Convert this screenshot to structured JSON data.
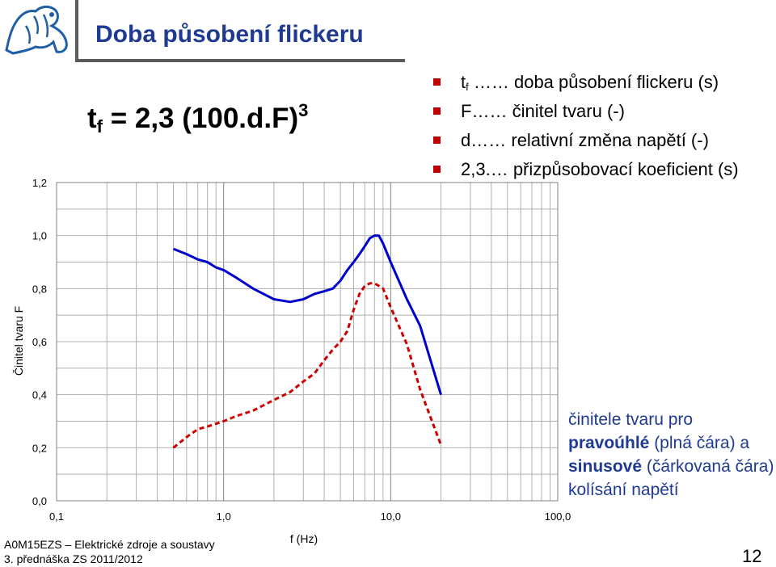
{
  "slide": {
    "title": "Doba působení flickeru",
    "formula": {
      "t": "t",
      "sub": "f",
      "rest": " = 2,3 (100.d.F)",
      "sup": "3"
    },
    "legend": [
      {
        "term": "t",
        "sub": "f",
        "text": " …… doba působení flickeru (s)"
      },
      {
        "term": "F",
        "sub": "",
        "text": "…… činitel tvaru (-)"
      },
      {
        "term": "d",
        "sub": "",
        "text": "…… relativní změna napětí (-)"
      },
      {
        "term": "2,3",
        "sub": "",
        "text": ".… přizpůsobovací koeficient (s)"
      }
    ],
    "note": {
      "p1": "činitele tvaru pro ",
      "b1": "pravoúhlé",
      "p2": " (plná čára) a ",
      "b2": "sinusové",
      "p3": " (čárkovaná čára) kolísání napětí"
    },
    "footer": {
      "course": "A0M15EZS – Elektrické zdroje a soustavy",
      "lecture": "3. přednáška ZS 2011/2012"
    },
    "page_number": "12",
    "colors": {
      "title": "#1f3a93",
      "bullet": "#c00000",
      "solid": "#0000cc",
      "dashed": "#cc0000"
    }
  },
  "chart_data": {
    "type": "line",
    "xscale": "log",
    "xlim": [
      0.1,
      100
    ],
    "ylim": [
      0,
      1.2
    ],
    "xlabel": "f (Hz)",
    "ylabel": "Činitel tvaru F",
    "xticks": [
      "0,1",
      "1,0",
      "10,0",
      "100,0"
    ],
    "yticks": [
      "0,0",
      "0,2",
      "0,4",
      "0,6",
      "0,8",
      "1,0",
      "1,2"
    ],
    "grid": true,
    "series": [
      {
        "style": "solid",
        "x": [
          0.5,
          0.6,
          0.7,
          0.8,
          0.9,
          1,
          1.2,
          1.5,
          2,
          2.5,
          3,
          3.5,
          4,
          4.5,
          5,
          5.5,
          6,
          6.5,
          7,
          7.5,
          8,
          8.5,
          9,
          10,
          12.5,
          15,
          20
        ],
        "y": [
          0.95,
          0.93,
          0.91,
          0.9,
          0.88,
          0.87,
          0.84,
          0.8,
          0.76,
          0.75,
          0.76,
          0.78,
          0.79,
          0.8,
          0.83,
          0.87,
          0.9,
          0.93,
          0.96,
          0.99,
          1.0,
          1.0,
          0.97,
          0.9,
          0.76,
          0.66,
          0.4
        ]
      },
      {
        "style": "dashed",
        "x": [
          0.5,
          0.6,
          0.7,
          0.8,
          1,
          1.2,
          1.5,
          2,
          2.5,
          3,
          3.5,
          4,
          4.5,
          5,
          5.5,
          6,
          6.5,
          7,
          7.5,
          8,
          8.5,
          9,
          10,
          12.5,
          15,
          20
        ],
        "y": [
          0.2,
          0.24,
          0.27,
          0.28,
          0.3,
          0.32,
          0.34,
          0.38,
          0.41,
          0.45,
          0.48,
          0.53,
          0.57,
          0.6,
          0.64,
          0.72,
          0.78,
          0.81,
          0.82,
          0.82,
          0.81,
          0.8,
          0.73,
          0.59,
          0.42,
          0.21
        ]
      }
    ]
  }
}
